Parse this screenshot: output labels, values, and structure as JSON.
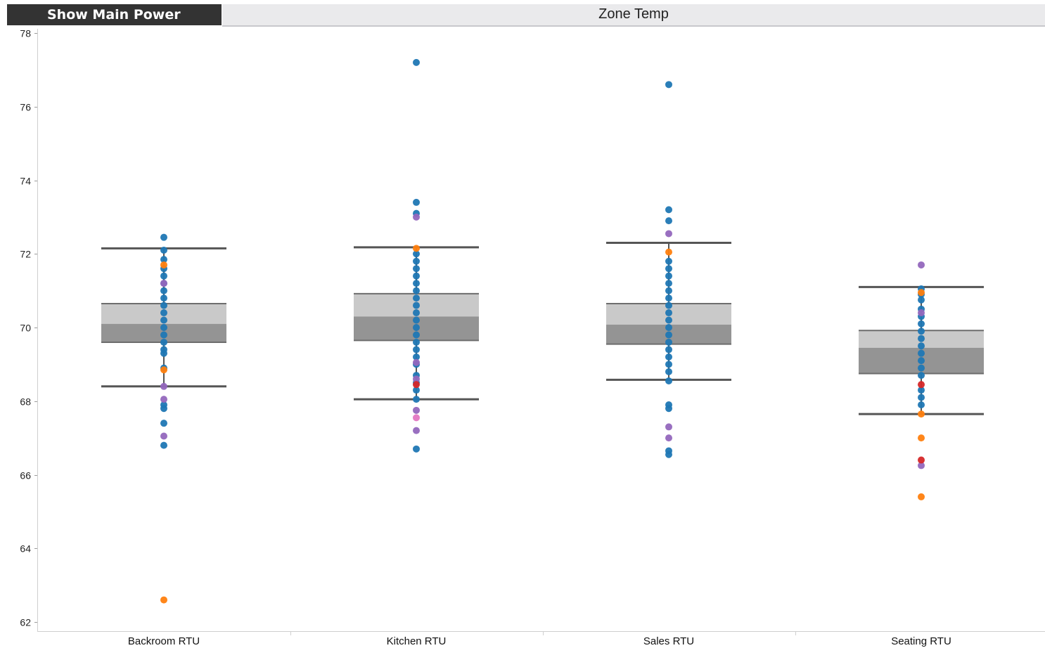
{
  "toolbar": {
    "show_main_power_label": "Show Main Power",
    "zone_temp_tab_label": "Zone Temp"
  },
  "colors": {
    "blue": "#1f77b4",
    "purple": "#9467bd",
    "orange": "#ff7f0e",
    "pink": "#e377c2",
    "red": "#d62728",
    "box_upper": "#c9c9c9",
    "box_lower": "#949494",
    "whisker": "#555555"
  },
  "chart_data": {
    "type": "box",
    "title": "",
    "xlabel": "",
    "ylabel": "",
    "ylim": [
      62,
      78
    ],
    "yticks": [
      "62",
      "64",
      "66",
      "68",
      "70",
      "72",
      "74",
      "76",
      "78"
    ],
    "grid": false,
    "categories": [
      "Backroom RTU",
      "Kitchen RTU",
      "Sales RTU",
      "Seating RTU"
    ],
    "boxes": [
      {
        "category": "Backroom RTU",
        "whisker_low": 68.4,
        "q1": 69.6,
        "median": 70.1,
        "q3": 70.65,
        "whisker_high": 72.15
      },
      {
        "category": "Kitchen RTU",
        "whisker_low": 68.05,
        "q1": 69.65,
        "median": 70.3,
        "q3": 70.92,
        "whisker_high": 72.18
      },
      {
        "category": "Sales RTU",
        "whisker_low": 68.58,
        "q1": 69.55,
        "median": 70.08,
        "q3": 70.65,
        "whisker_high": 72.3
      },
      {
        "category": "Seating RTU",
        "whisker_low": 67.65,
        "q1": 68.75,
        "median": 69.45,
        "q3": 69.92,
        "whisker_high": 71.1
      }
    ],
    "points": [
      {
        "category": "Backroom RTU",
        "values": [
          72.45,
          72.1,
          71.85,
          71.6,
          71.4,
          71.2,
          71.0,
          70.8,
          70.6,
          70.4,
          70.2,
          70.0,
          69.8,
          69.6,
          69.4,
          69.3,
          68.9,
          67.9,
          67.8,
          67.4,
          66.8
        ],
        "color": "blue"
      },
      {
        "category": "Backroom RTU",
        "values": [
          71.2,
          68.4,
          68.05,
          67.05
        ],
        "color": "purple"
      },
      {
        "category": "Backroom RTU",
        "values": [
          71.7,
          68.85,
          62.6
        ],
        "color": "orange"
      },
      {
        "category": "Kitchen RTU",
        "values": [
          77.2,
          73.4,
          73.1,
          72.0,
          71.8,
          71.6,
          71.4,
          71.2,
          71.0,
          70.8,
          70.6,
          70.4,
          70.2,
          70.0,
          69.8,
          69.6,
          69.4,
          69.2,
          69.0,
          68.7,
          68.5,
          68.3,
          68.05,
          66.7
        ],
        "color": "blue"
      },
      {
        "category": "Kitchen RTU",
        "values": [
          73.0,
          69.05,
          68.6,
          67.75,
          67.2
        ],
        "color": "purple"
      },
      {
        "category": "Kitchen RTU",
        "values": [
          72.15
        ],
        "color": "orange"
      },
      {
        "category": "Kitchen RTU",
        "values": [
          67.55
        ],
        "color": "pink"
      },
      {
        "category": "Kitchen RTU",
        "values": [
          68.45
        ],
        "color": "red"
      },
      {
        "category": "Sales RTU",
        "values": [
          76.6,
          73.2,
          72.9,
          71.8,
          71.6,
          71.4,
          71.2,
          71.0,
          70.8,
          70.6,
          70.4,
          70.2,
          70.0,
          69.8,
          69.6,
          69.4,
          69.2,
          69.0,
          68.8,
          68.55,
          67.9,
          67.8,
          66.65,
          66.55
        ],
        "color": "blue"
      },
      {
        "category": "Sales RTU",
        "values": [
          72.55,
          67.3,
          67.0
        ],
        "color": "purple"
      },
      {
        "category": "Sales RTU",
        "values": [
          72.05
        ],
        "color": "orange"
      },
      {
        "category": "Seating RTU",
        "values": [
          71.05,
          70.9,
          70.75,
          70.5,
          70.3,
          70.1,
          69.9,
          69.7,
          69.5,
          69.3,
          69.1,
          68.9,
          68.7,
          68.3,
          68.1,
          67.9
        ],
        "color": "blue"
      },
      {
        "category": "Seating RTU",
        "values": [
          71.7,
          70.4,
          66.25
        ],
        "color": "purple"
      },
      {
        "category": "Seating RTU",
        "values": [
          70.95,
          67.65,
          67.0,
          65.4
        ],
        "color": "orange"
      },
      {
        "category": "Seating RTU",
        "values": [
          68.45,
          66.4
        ],
        "color": "red"
      }
    ]
  }
}
